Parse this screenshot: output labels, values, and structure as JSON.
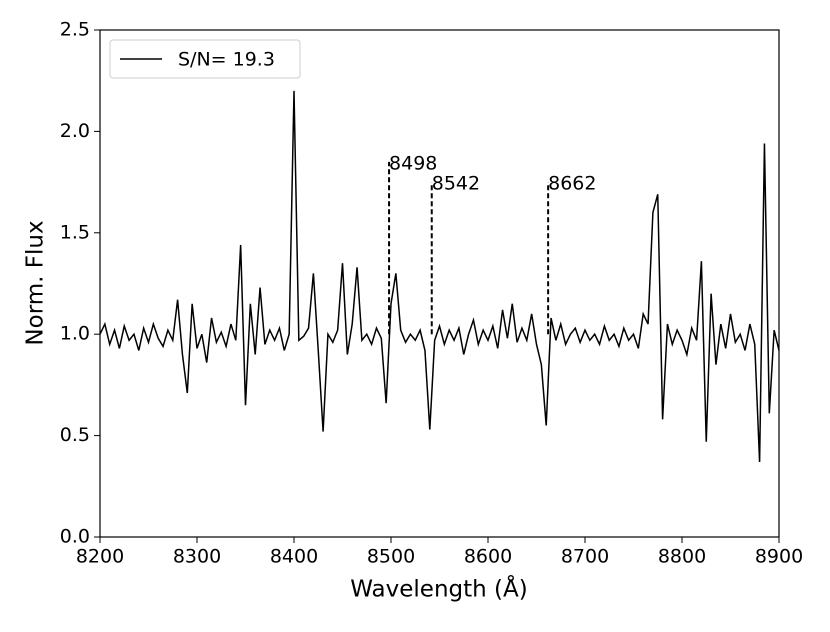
{
  "chart_data": {
    "type": "line",
    "xlabel": "Wavelength (Å)",
    "ylabel": "Norm. Flux",
    "x": [
      8200,
      8205,
      8210,
      8215,
      8220,
      8225,
      8230,
      8235,
      8240,
      8245,
      8250,
      8255,
      8260,
      8265,
      8270,
      8275,
      8280,
      8285,
      8290,
      8295,
      8300,
      8305,
      8310,
      8315,
      8320,
      8325,
      8330,
      8335,
      8340,
      8345,
      8350,
      8355,
      8360,
      8365,
      8370,
      8375,
      8380,
      8385,
      8390,
      8395,
      8400,
      8405,
      8410,
      8415,
      8420,
      8425,
      8430,
      8435,
      8440,
      8445,
      8450,
      8455,
      8460,
      8465,
      8470,
      8475,
      8480,
      8485,
      8490,
      8495,
      8500,
      8505,
      8510,
      8515,
      8520,
      8525,
      8530,
      8535,
      8540,
      8545,
      8550,
      8555,
      8560,
      8565,
      8570,
      8575,
      8580,
      8585,
      8590,
      8595,
      8600,
      8605,
      8610,
      8615,
      8620,
      8625,
      8630,
      8635,
      8640,
      8645,
      8650,
      8655,
      8660,
      8665,
      8670,
      8675,
      8680,
      8685,
      8690,
      8695,
      8700,
      8705,
      8710,
      8715,
      8720,
      8725,
      8730,
      8735,
      8740,
      8745,
      8750,
      8755,
      8760,
      8765,
      8770,
      8775,
      8780,
      8785,
      8790,
      8795,
      8800,
      8805,
      8810,
      8815,
      8820,
      8825,
      8830,
      8835,
      8840,
      8845,
      8850,
      8855,
      8860,
      8865,
      8870,
      8875,
      8880,
      8885,
      8890,
      8895,
      8900
    ],
    "series": [
      {
        "name": "S/N= 19.3",
        "color": "#000000",
        "values": [
          1.0,
          1.05,
          0.95,
          1.02,
          0.93,
          1.04,
          0.97,
          1.0,
          0.92,
          1.03,
          0.96,
          1.05,
          0.98,
          0.94,
          1.02,
          0.97,
          1.17,
          0.9,
          0.71,
          1.15,
          0.93,
          1.0,
          0.86,
          1.08,
          0.96,
          1.01,
          0.94,
          1.05,
          0.97,
          1.44,
          0.65,
          1.15,
          0.9,
          1.23,
          0.95,
          1.02,
          0.97,
          1.03,
          0.92,
          1.0,
          2.2,
          0.97,
          0.99,
          1.03,
          1.3,
          0.92,
          0.52,
          1.0,
          0.96,
          1.02,
          1.35,
          0.9,
          1.05,
          1.33,
          0.97,
          1.0,
          0.95,
          1.03,
          0.98,
          0.66,
          1.15,
          1.3,
          1.02,
          0.96,
          1.0,
          0.97,
          1.02,
          0.92,
          0.53,
          0.97,
          1.04,
          0.95,
          1.02,
          0.97,
          1.03,
          0.9,
          1.0,
          1.07,
          0.95,
          1.02,
          0.97,
          1.04,
          0.93,
          1.12,
          0.98,
          1.15,
          0.96,
          1.03,
          0.97,
          1.1,
          0.95,
          0.85,
          0.55,
          1.08,
          0.97,
          1.05,
          0.95,
          1.0,
          1.03,
          0.96,
          1.02,
          0.97,
          1.0,
          0.95,
          1.04,
          0.97,
          1.0,
          0.94,
          1.03,
          0.97,
          1.0,
          0.93,
          1.1,
          1.05,
          1.6,
          1.69,
          0.58,
          1.05,
          0.95,
          1.02,
          0.97,
          0.9,
          1.03,
          0.97,
          1.36,
          0.47,
          1.2,
          0.85,
          1.05,
          0.93,
          1.1,
          0.96,
          1.0,
          0.92,
          1.05,
          0.95,
          0.37,
          1.94,
          0.61,
          1.02,
          0.92
        ]
      }
    ],
    "annotations": [
      {
        "text": "8498",
        "x": 8498,
        "y_range": [
          1.0,
          1.85
        ]
      },
      {
        "text": "8542",
        "x": 8542,
        "y_range": [
          1.0,
          1.75
        ]
      },
      {
        "text": "8662",
        "x": 8662,
        "y_range": [
          1.0,
          1.75
        ]
      }
    ],
    "xlim": [
      8200,
      8900
    ],
    "ylim": [
      0,
      2.5
    ],
    "xticks": [
      8200,
      8300,
      8400,
      8500,
      8600,
      8700,
      8800,
      8900
    ],
    "yticks": [
      {
        "value": 0,
        "label": "0.0"
      },
      0.5,
      {
        "value": 1,
        "label": "1.0"
      },
      1.5,
      {
        "value": 2,
        "label": "2.0"
      },
      2.5
    ],
    "legend": "upper left"
  }
}
